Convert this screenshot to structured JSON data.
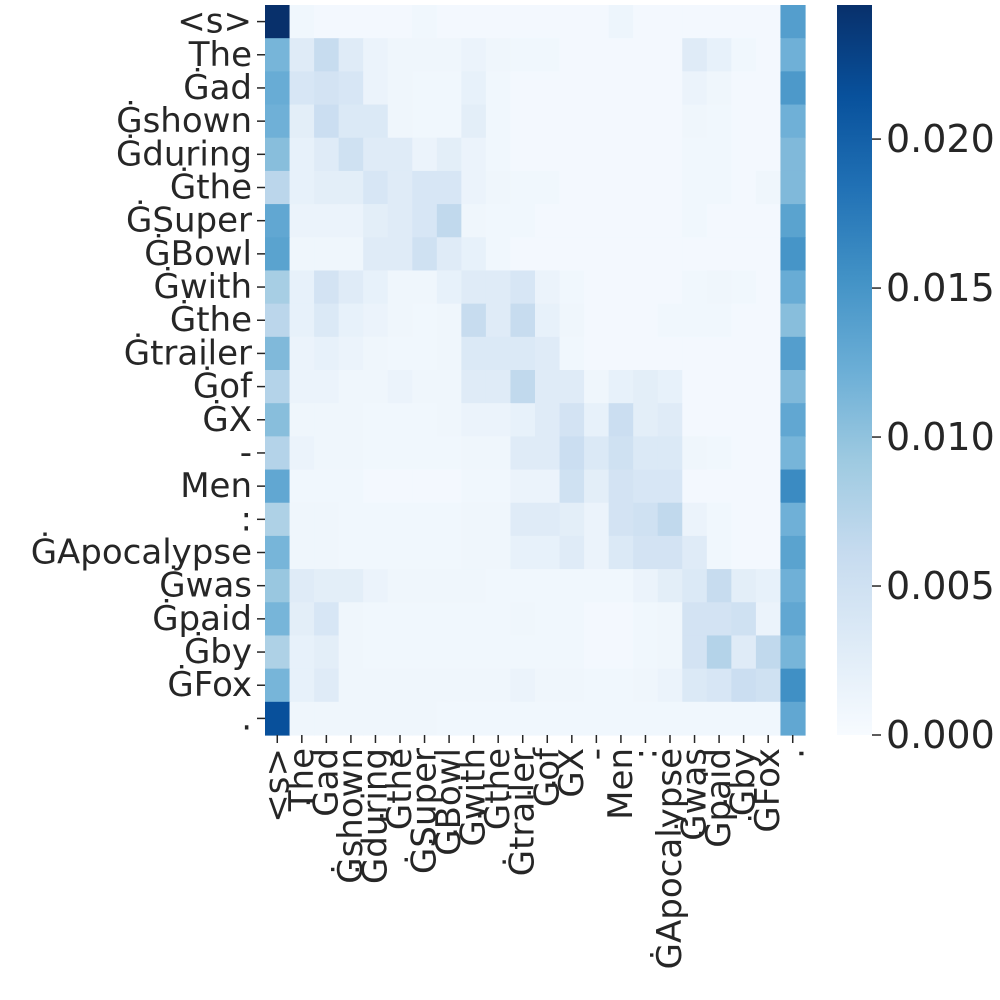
{
  "chart_data": {
    "type": "heatmap",
    "tokens": [
      "<s>",
      "The",
      "Ġad",
      "Ġshown",
      "Ġduring",
      "Ġthe",
      "ĠSuper",
      "ĠBowl",
      "Ġwith",
      "Ġthe",
      "Ġtrailer",
      "Ġof",
      "ĠX",
      "-",
      "Men",
      ":",
      "ĠApocalypse",
      "Ġwas",
      "Ġpaid",
      "Ġby",
      "ĠFox",
      "."
    ],
    "colorbar": {
      "min": 0.0,
      "max": 0.0245,
      "ticks": [
        0.0,
        0.005,
        0.01,
        0.015,
        0.02
      ],
      "tick_labels": [
        "0.000",
        "0.005",
        "0.010",
        "0.015",
        "0.020"
      ]
    },
    "colors": {
      "low": "#f7fbff",
      "high": "#08306b"
    },
    "matrix": [
      [
        0.0245,
        0.0008,
        0.0005,
        0.0005,
        0.0005,
        0.0005,
        0.0008,
        0.0005,
        0.0005,
        0.0005,
        0.0005,
        0.0005,
        0.0005,
        0.0005,
        0.0012,
        0.0005,
        0.0005,
        0.0005,
        0.0005,
        0.0005,
        0.0005,
        0.014
      ],
      [
        0.0115,
        0.003,
        0.006,
        0.003,
        0.0015,
        0.001,
        0.001,
        0.001,
        0.0015,
        0.001,
        0.0008,
        0.0008,
        0.0005,
        0.0005,
        0.0005,
        0.0005,
        0.0005,
        0.003,
        0.002,
        0.0008,
        0.0005,
        0.012
      ],
      [
        0.0125,
        0.004,
        0.0045,
        0.004,
        0.0015,
        0.001,
        0.0008,
        0.0008,
        0.002,
        0.0008,
        0.0005,
        0.0005,
        0.0005,
        0.0005,
        0.0005,
        0.0005,
        0.0005,
        0.0015,
        0.001,
        0.0005,
        0.0005,
        0.0145
      ],
      [
        0.012,
        0.0025,
        0.0055,
        0.0035,
        0.0035,
        0.001,
        0.0008,
        0.0008,
        0.0025,
        0.0008,
        0.0005,
        0.0005,
        0.0005,
        0.0005,
        0.0005,
        0.0005,
        0.0005,
        0.001,
        0.0008,
        0.0005,
        0.0005,
        0.012
      ],
      [
        0.0105,
        0.002,
        0.003,
        0.005,
        0.003,
        0.003,
        0.0015,
        0.0025,
        0.0015,
        0.0008,
        0.0005,
        0.0005,
        0.0005,
        0.0005,
        0.0005,
        0.0005,
        0.0005,
        0.0008,
        0.0008,
        0.0005,
        0.0005,
        0.011
      ],
      [
        0.007,
        0.002,
        0.0025,
        0.0025,
        0.004,
        0.003,
        0.004,
        0.004,
        0.0015,
        0.001,
        0.0008,
        0.0008,
        0.0005,
        0.0005,
        0.0005,
        0.0005,
        0.0005,
        0.0008,
        0.0008,
        0.0005,
        0.001,
        0.011
      ],
      [
        0.013,
        0.0015,
        0.0015,
        0.0015,
        0.0025,
        0.003,
        0.004,
        0.0065,
        0.001,
        0.0008,
        0.0008,
        0.0005,
        0.0005,
        0.0005,
        0.0005,
        0.0005,
        0.0005,
        0.0008,
        0.0005,
        0.0005,
        0.0005,
        0.0135
      ],
      [
        0.0135,
        0.001,
        0.001,
        0.001,
        0.003,
        0.003,
        0.005,
        0.003,
        0.002,
        0.0008,
        0.0005,
        0.0005,
        0.0005,
        0.0005,
        0.0005,
        0.0005,
        0.0005,
        0.0005,
        0.0005,
        0.0005,
        0.0005,
        0.015
      ],
      [
        0.0085,
        0.002,
        0.0045,
        0.003,
        0.002,
        0.001,
        0.001,
        0.002,
        0.003,
        0.003,
        0.004,
        0.0015,
        0.0008,
        0.0005,
        0.0005,
        0.0005,
        0.0005,
        0.0008,
        0.001,
        0.0008,
        0.0005,
        0.0125
      ],
      [
        0.007,
        0.002,
        0.0035,
        0.002,
        0.0015,
        0.001,
        0.0008,
        0.001,
        0.006,
        0.003,
        0.006,
        0.002,
        0.001,
        0.0005,
        0.0005,
        0.0005,
        0.0008,
        0.0008,
        0.0008,
        0.0005,
        0.0005,
        0.0105
      ],
      [
        0.011,
        0.0015,
        0.002,
        0.0015,
        0.001,
        0.0008,
        0.0008,
        0.001,
        0.0035,
        0.0035,
        0.0035,
        0.003,
        0.0008,
        0.0005,
        0.0005,
        0.0005,
        0.0005,
        0.0005,
        0.0005,
        0.0005,
        0.0005,
        0.014
      ],
      [
        0.0075,
        0.0015,
        0.0015,
        0.001,
        0.001,
        0.0015,
        0.001,
        0.001,
        0.003,
        0.003,
        0.0065,
        0.003,
        0.003,
        0.001,
        0.002,
        0.0025,
        0.002,
        0.0005,
        0.0005,
        0.0005,
        0.0005,
        0.011
      ],
      [
        0.0105,
        0.001,
        0.001,
        0.001,
        0.0008,
        0.0008,
        0.0008,
        0.001,
        0.0015,
        0.0015,
        0.002,
        0.003,
        0.0045,
        0.002,
        0.0055,
        0.0025,
        0.003,
        0.0005,
        0.0005,
        0.0005,
        0.0005,
        0.013
      ],
      [
        0.0075,
        0.0015,
        0.001,
        0.001,
        0.0008,
        0.0008,
        0.0008,
        0.0008,
        0.001,
        0.001,
        0.003,
        0.003,
        0.0055,
        0.0035,
        0.005,
        0.0035,
        0.0035,
        0.001,
        0.0008,
        0.0005,
        0.0005,
        0.0115
      ],
      [
        0.013,
        0.0008,
        0.0008,
        0.0008,
        0.0005,
        0.0005,
        0.0005,
        0.0005,
        0.0008,
        0.0008,
        0.0015,
        0.0015,
        0.005,
        0.0025,
        0.0045,
        0.004,
        0.004,
        0.0005,
        0.0005,
        0.0005,
        0.0005,
        0.016
      ],
      [
        0.008,
        0.001,
        0.001,
        0.0008,
        0.0008,
        0.0008,
        0.0008,
        0.0008,
        0.001,
        0.001,
        0.003,
        0.003,
        0.0025,
        0.0015,
        0.0045,
        0.005,
        0.0065,
        0.0015,
        0.0008,
        0.0005,
        0.0005,
        0.012
      ],
      [
        0.0115,
        0.001,
        0.001,
        0.0008,
        0.0008,
        0.0008,
        0.0008,
        0.0008,
        0.001,
        0.001,
        0.002,
        0.002,
        0.003,
        0.0015,
        0.0035,
        0.0045,
        0.0045,
        0.003,
        0.0008,
        0.0005,
        0.0005,
        0.0135
      ],
      [
        0.0095,
        0.003,
        0.0025,
        0.0025,
        0.0015,
        0.001,
        0.001,
        0.001,
        0.001,
        0.0008,
        0.0008,
        0.0008,
        0.0008,
        0.0008,
        0.0008,
        0.0015,
        0.0025,
        0.0035,
        0.006,
        0.0025,
        0.002,
        0.012
      ],
      [
        0.0115,
        0.0025,
        0.004,
        0.001,
        0.0008,
        0.0008,
        0.0008,
        0.0008,
        0.0008,
        0.0008,
        0.001,
        0.0008,
        0.0008,
        0.0005,
        0.0005,
        0.0008,
        0.001,
        0.0045,
        0.0045,
        0.005,
        0.0015,
        0.013
      ],
      [
        0.008,
        0.002,
        0.0025,
        0.001,
        0.0008,
        0.0008,
        0.0008,
        0.0008,
        0.0008,
        0.0008,
        0.0008,
        0.0008,
        0.0008,
        0.0005,
        0.0005,
        0.0008,
        0.001,
        0.0045,
        0.0075,
        0.003,
        0.0065,
        0.0115
      ],
      [
        0.0115,
        0.002,
        0.003,
        0.001,
        0.001,
        0.001,
        0.001,
        0.001,
        0.001,
        0.001,
        0.0015,
        0.001,
        0.001,
        0.0008,
        0.0008,
        0.001,
        0.0015,
        0.0035,
        0.004,
        0.0055,
        0.005,
        0.0155
      ],
      [
        0.0215,
        0.001,
        0.001,
        0.001,
        0.001,
        0.001,
        0.001,
        0.0008,
        0.0008,
        0.0008,
        0.0008,
        0.0008,
        0.0008,
        0.0008,
        0.0008,
        0.0008,
        0.0008,
        0.0008,
        0.0008,
        0.0008,
        0.0008,
        0.013
      ]
    ]
  }
}
